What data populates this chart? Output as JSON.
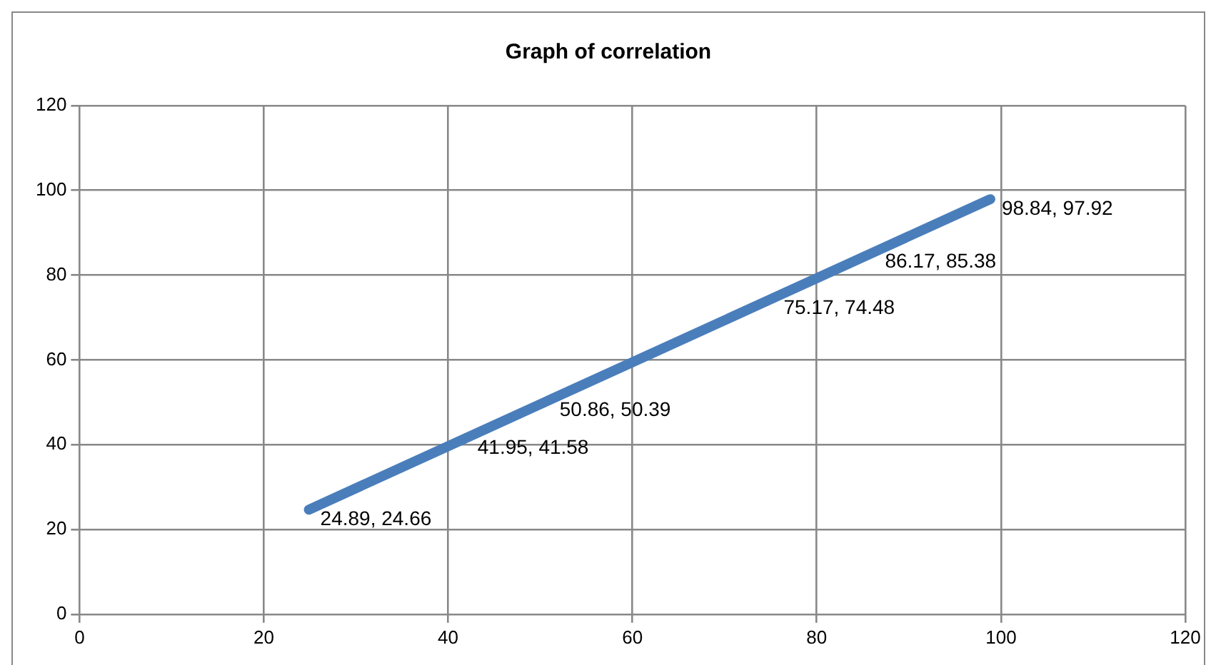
{
  "chart_data": {
    "type": "line",
    "title": "Graph of correlation",
    "x": [
      24.89,
      41.95,
      50.86,
      75.17,
      86.17,
      98.84
    ],
    "values": [
      24.66,
      41.58,
      50.39,
      74.48,
      85.38,
      97.92
    ],
    "value_labels": [
      "24.89, 24.66",
      "41.95, 41.58",
      "50.86, 50.39",
      "75.17, 74.48",
      "86.17, 85.38",
      "98.84, 97.92"
    ],
    "color": "#4a7ebb",
    "xlim": [
      0,
      120
    ],
    "xticks": [
      0,
      20,
      40,
      60,
      80,
      100,
      120
    ],
    "ylim": [
      0,
      120
    ],
    "yticks": [
      0,
      20,
      40,
      60,
      80,
      100,
      120
    ],
    "grid": true,
    "legend": false,
    "marker": "none",
    "line_style": "solid"
  }
}
